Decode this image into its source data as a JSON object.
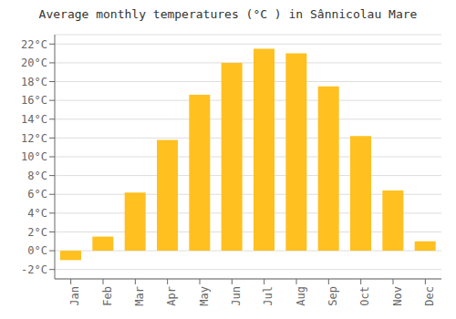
{
  "chart_data": {
    "type": "bar",
    "title": "Average monthly temperatures (°C ) in Sânnicolau Mare",
    "categories": [
      "Jan",
      "Feb",
      "Mar",
      "Apr",
      "May",
      "Jun",
      "Jul",
      "Aug",
      "Sep",
      "Oct",
      "Nov",
      "Dec"
    ],
    "values": [
      -1.0,
      1.5,
      6.2,
      11.8,
      16.6,
      20.0,
      21.5,
      21.0,
      17.5,
      12.2,
      6.4,
      1.0
    ],
    "color": "#FFC020",
    "ylim": [
      -3,
      23
    ],
    "yticks": [
      {
        "value": -2,
        "label": "-2°C"
      },
      {
        "value": 0,
        "label": "0°C"
      },
      {
        "value": 2,
        "label": "2°C"
      },
      {
        "value": 4,
        "label": "4°C"
      },
      {
        "value": 6,
        "label": "6°C"
      },
      {
        "value": 8,
        "label": "8°C"
      },
      {
        "value": 10,
        "label": "10°C"
      },
      {
        "value": 12,
        "label": "12°C"
      },
      {
        "value": 14,
        "label": "14°C"
      },
      {
        "value": 16,
        "label": "16°C"
      },
      {
        "value": 18,
        "label": "18°C"
      },
      {
        "value": 20,
        "label": "20°C"
      },
      {
        "value": 22,
        "label": "22°C"
      }
    ],
    "grid": true
  }
}
